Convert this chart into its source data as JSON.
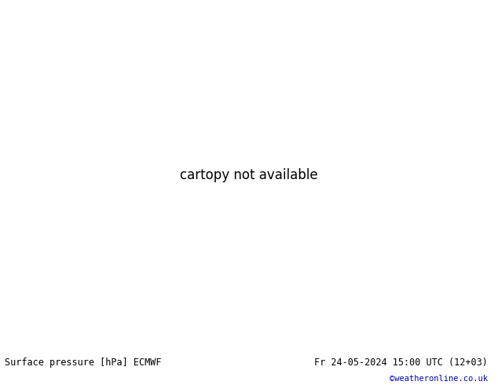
{
  "title_left": "Surface pressure [hPa] ECMWF",
  "title_right": "Fr 24-05-2024 15:00 UTC (12+03)",
  "copyright": "©weatheronline.co.uk",
  "copyright_color": "#0000cc",
  "land_color": "#b5d4a0",
  "ocean_color": "#e8e8e8",
  "text_color_black": "#000000",
  "text_color_red": "#cc0000",
  "text_color_blue": "#0000bb",
  "footer_bg": "#d8d8d8",
  "footer_text_color": "#000000",
  "fig_width": 6.34,
  "fig_height": 4.9,
  "dpi": 100,
  "lon_min": -45,
  "lon_max": 55,
  "lat_min": 25,
  "lat_max": 75
}
